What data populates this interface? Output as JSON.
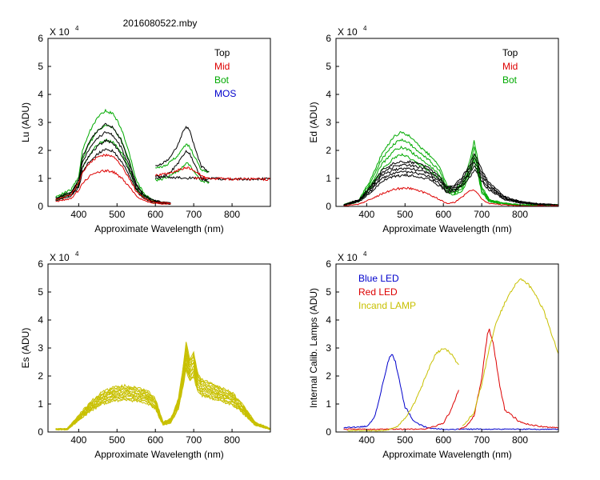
{
  "title": "2016080522.mby",
  "colors": {
    "black": "#000000",
    "red": "#dd0000",
    "green": "#00aa00",
    "blue": "#0000cc",
    "olive": "#c8c000"
  },
  "chart_data": [
    {
      "type": "line",
      "ylabel": "Lu (ADU)",
      "xlabel": "Approximate Wavelength (nm)",
      "exponent_label": "X 10",
      "exponent": "4",
      "xlim": [
        320,
        900
      ],
      "ylim": [
        0,
        6
      ],
      "xticks": [
        "400",
        "500",
        "600",
        "700",
        "800"
      ],
      "yticks": [
        "0",
        "1",
        "2",
        "3",
        "4",
        "5",
        "6"
      ],
      "legend": [
        {
          "label": "Top",
          "color": "#000000"
        },
        {
          "label": "Mid",
          "color": "#dd0000"
        },
        {
          "label": "Bot",
          "color": "#00aa00"
        },
        {
          "label": "MOS",
          "color": "#0000cc"
        }
      ],
      "series": [
        {
          "name": "Bot",
          "color": "#00aa00",
          "count": 3,
          "x": [
            340,
            380,
            400,
            410,
            430,
            450,
            470,
            490,
            510,
            530,
            550,
            570,
            590,
            610,
            640
          ],
          "y": [
            0.3,
            0.5,
            0.9,
            1.7,
            2.3,
            2.7,
            2.9,
            2.8,
            2.4,
            1.7,
            0.8,
            0.4,
            0.2,
            0.15,
            0.1
          ]
        },
        {
          "name": "Top",
          "color": "#000000",
          "count": 4,
          "x": [
            340,
            380,
            400,
            410,
            430,
            450,
            470,
            490,
            510,
            530,
            550,
            570,
            590,
            610,
            640
          ],
          "y": [
            0.25,
            0.45,
            0.8,
            1.5,
            2.0,
            2.3,
            2.5,
            2.4,
            2.0,
            1.4,
            0.7,
            0.35,
            0.2,
            0.15,
            0.1
          ]
        },
        {
          "name": "Mid",
          "color": "#dd0000",
          "count": 2,
          "x": [
            340,
            380,
            400,
            410,
            430,
            450,
            470,
            490,
            510,
            530,
            550,
            570,
            590,
            610,
            640
          ],
          "y": [
            0.2,
            0.35,
            0.7,
            1.0,
            1.35,
            1.5,
            1.55,
            1.5,
            1.25,
            0.9,
            0.45,
            0.25,
            0.15,
            0.12,
            0.1
          ]
        },
        {
          "name": "Bot",
          "color": "#00aa00",
          "count": 2,
          "x": [
            600,
            620,
            640,
            660,
            670,
            680,
            690,
            700,
            720,
            740
          ],
          "y": [
            1.15,
            1.2,
            1.35,
            1.55,
            1.7,
            1.9,
            1.8,
            1.55,
            1.1,
            1.05
          ]
        },
        {
          "name": "Top",
          "color": "#000000",
          "count": 2,
          "x": [
            600,
            620,
            640,
            660,
            670,
            680,
            690,
            700,
            720,
            740
          ],
          "y": [
            1.2,
            1.3,
            1.5,
            1.9,
            2.2,
            2.4,
            2.3,
            1.9,
            1.2,
            1.05
          ]
        },
        {
          "name": "Mid",
          "color": "#dd0000",
          "count": 1,
          "x": [
            600,
            620,
            640,
            660,
            670,
            680,
            690,
            700,
            720,
            740
          ],
          "y": [
            1.1,
            1.15,
            1.2,
            1.3,
            1.35,
            1.4,
            1.35,
            1.3,
            1.1,
            1.0
          ]
        },
        {
          "name": "Top",
          "color": "#000000",
          "count": 1,
          "x": [
            600,
            700,
            800,
            900
          ],
          "y": [
            1.08,
            1.0,
            0.98,
            0.98
          ]
        },
        {
          "name": "Mid",
          "color": "#dd0000",
          "count": 1,
          "x": [
            700,
            800,
            900
          ],
          "y": [
            1.02,
            0.98,
            0.97
          ]
        }
      ]
    },
    {
      "type": "line",
      "ylabel": "Ed  (ADU)",
      "xlabel": "Approximate Wavelength (nm)",
      "exponent_label": "X 10",
      "exponent": "4",
      "xlim": [
        320,
        900
      ],
      "ylim": [
        0,
        6
      ],
      "xticks": [
        "400",
        "500",
        "600",
        "700",
        "800"
      ],
      "yticks": [
        "0",
        "1",
        "2",
        "3",
        "4",
        "5",
        "6"
      ],
      "legend": [
        {
          "label": "Top",
          "color": "#000000"
        },
        {
          "label": "Mid",
          "color": "#dd0000"
        },
        {
          "label": "Bot",
          "color": "#00aa00"
        }
      ],
      "series": [
        {
          "name": "Bot",
          "color": "#00aa00",
          "count": 4,
          "x": [
            340,
            380,
            410,
            440,
            470,
            490,
            510,
            530,
            560,
            590,
            610,
            630,
            650,
            670,
            680,
            690,
            700,
            720,
            760,
            800,
            850,
            900
          ],
          "y": [
            0.05,
            0.2,
            0.8,
            1.6,
            2.1,
            2.25,
            2.15,
            1.9,
            1.6,
            1.2,
            0.6,
            0.5,
            0.7,
            1.4,
            2.0,
            1.4,
            0.6,
            0.2,
            0.1,
            0.05,
            0.05,
            0.05
          ]
        },
        {
          "name": "Top",
          "color": "#000000",
          "count": 5,
          "x": [
            340,
            380,
            410,
            440,
            470,
            490,
            510,
            530,
            560,
            590,
            610,
            630,
            650,
            670,
            680,
            690,
            700,
            720,
            760,
            800,
            850,
            900
          ],
          "y": [
            0.05,
            0.2,
            0.6,
            1.1,
            1.3,
            1.35,
            1.35,
            1.3,
            1.2,
            0.9,
            0.6,
            0.65,
            0.9,
            1.3,
            1.6,
            1.4,
            1.1,
            0.7,
            0.3,
            0.15,
            0.08,
            0.05
          ]
        },
        {
          "name": "Mid",
          "color": "#dd0000",
          "count": 1,
          "x": [
            340,
            380,
            410,
            440,
            470,
            490,
            510,
            530,
            560,
            590,
            610,
            630,
            650,
            670,
            680,
            690,
            700,
            720,
            760,
            800,
            850,
            900
          ],
          "y": [
            0.02,
            0.08,
            0.25,
            0.45,
            0.6,
            0.65,
            0.65,
            0.6,
            0.45,
            0.25,
            0.1,
            0.15,
            0.35,
            0.55,
            0.6,
            0.45,
            0.25,
            0.1,
            0.05,
            0.02,
            0.02,
            0.02
          ]
        }
      ]
    },
    {
      "type": "line",
      "ylabel": "Es  (ADU)",
      "xlabel": "Approximate Wavelength (nm)",
      "exponent_label": "X 10",
      "exponent": "4",
      "xlim": [
        320,
        900
      ],
      "ylim": [
        0,
        6
      ],
      "xticks": [
        "400",
        "500",
        "600",
        "700",
        "800"
      ],
      "yticks": [
        "0",
        "1",
        "2",
        "3",
        "4",
        "5",
        "6"
      ],
      "legend": [],
      "series": [
        {
          "name": "Es",
          "color": "#c8c000",
          "count": 12,
          "x": [
            340,
            370,
            400,
            430,
            460,
            490,
            520,
            550,
            580,
            600,
            620,
            640,
            660,
            670,
            680,
            690,
            700,
            710,
            720,
            740,
            760,
            780,
            800,
            830,
            860,
            900
          ],
          "y": [
            0.1,
            0.1,
            0.5,
            0.9,
            1.2,
            1.35,
            1.4,
            1.35,
            1.25,
            1.0,
            0.3,
            0.4,
            1.0,
            1.8,
            2.7,
            2.2,
            2.4,
            1.8,
            1.6,
            1.5,
            1.4,
            1.3,
            1.2,
            0.8,
            0.3,
            0.1
          ]
        }
      ]
    },
    {
      "type": "line",
      "ylabel": "Internal Calib. Lamps (ADU)",
      "xlabel": "Approximate Wavelength (nm)",
      "exponent_label": "X 10",
      "exponent": "4",
      "xlim": [
        320,
        900
      ],
      "ylim": [
        0,
        6
      ],
      "xticks": [
        "400",
        "500",
        "600",
        "700",
        "800"
      ],
      "yticks": [
        "0",
        "1",
        "2",
        "3",
        "4",
        "5",
        "6"
      ],
      "legend": [
        {
          "label": "Blue LED",
          "color": "#0000cc"
        },
        {
          "label": "Red LED",
          "color": "#dd0000"
        },
        {
          "label": "Incand LAMP",
          "color": "#c8c000"
        }
      ],
      "series": [
        {
          "name": "Blue LED",
          "color": "#0000cc",
          "count": 1,
          "x": [
            340,
            400,
            420,
            440,
            455,
            465,
            475,
            490,
            500,
            520,
            540,
            560,
            600,
            700,
            800,
            900
          ],
          "y": [
            0.15,
            0.2,
            0.5,
            1.6,
            2.5,
            2.8,
            2.5,
            1.5,
            0.9,
            0.45,
            0.25,
            0.15,
            0.1,
            0.1,
            0.1,
            0.1
          ]
        },
        {
          "name": "Red LED (segment)",
          "color": "#dd0000",
          "count": 1,
          "x": [
            340,
            450,
            550,
            600,
            620,
            640
          ],
          "y": [
            0.1,
            0.1,
            0.1,
            0.3,
            0.8,
            1.5
          ]
        },
        {
          "name": "Red LED",
          "color": "#dd0000",
          "count": 1,
          "x": [
            640,
            660,
            680,
            700,
            715,
            720,
            730,
            745,
            760,
            800,
            850,
            900
          ],
          "y": [
            0.1,
            0.2,
            0.6,
            1.9,
            3.5,
            3.65,
            3.2,
            1.8,
            0.8,
            0.35,
            0.2,
            0.15
          ]
        },
        {
          "name": "Incand LAMP (segment)",
          "color": "#c8c000",
          "count": 1,
          "x": [
            350,
            450,
            480,
            500,
            520,
            540,
            560,
            580,
            600,
            620,
            640
          ],
          "y": [
            0.05,
            0.05,
            0.2,
            0.5,
            0.9,
            1.5,
            2.2,
            2.8,
            3.0,
            2.8,
            2.4
          ]
        },
        {
          "name": "Incand LAMP",
          "color": "#c8c000",
          "count": 1,
          "x": [
            650,
            680,
            700,
            720,
            740,
            760,
            780,
            800,
            820,
            840,
            860,
            880,
            900
          ],
          "y": [
            0.2,
            0.7,
            1.7,
            3.0,
            4.0,
            4.6,
            5.1,
            5.5,
            5.3,
            4.9,
            4.4,
            3.6,
            2.8
          ]
        }
      ]
    }
  ]
}
